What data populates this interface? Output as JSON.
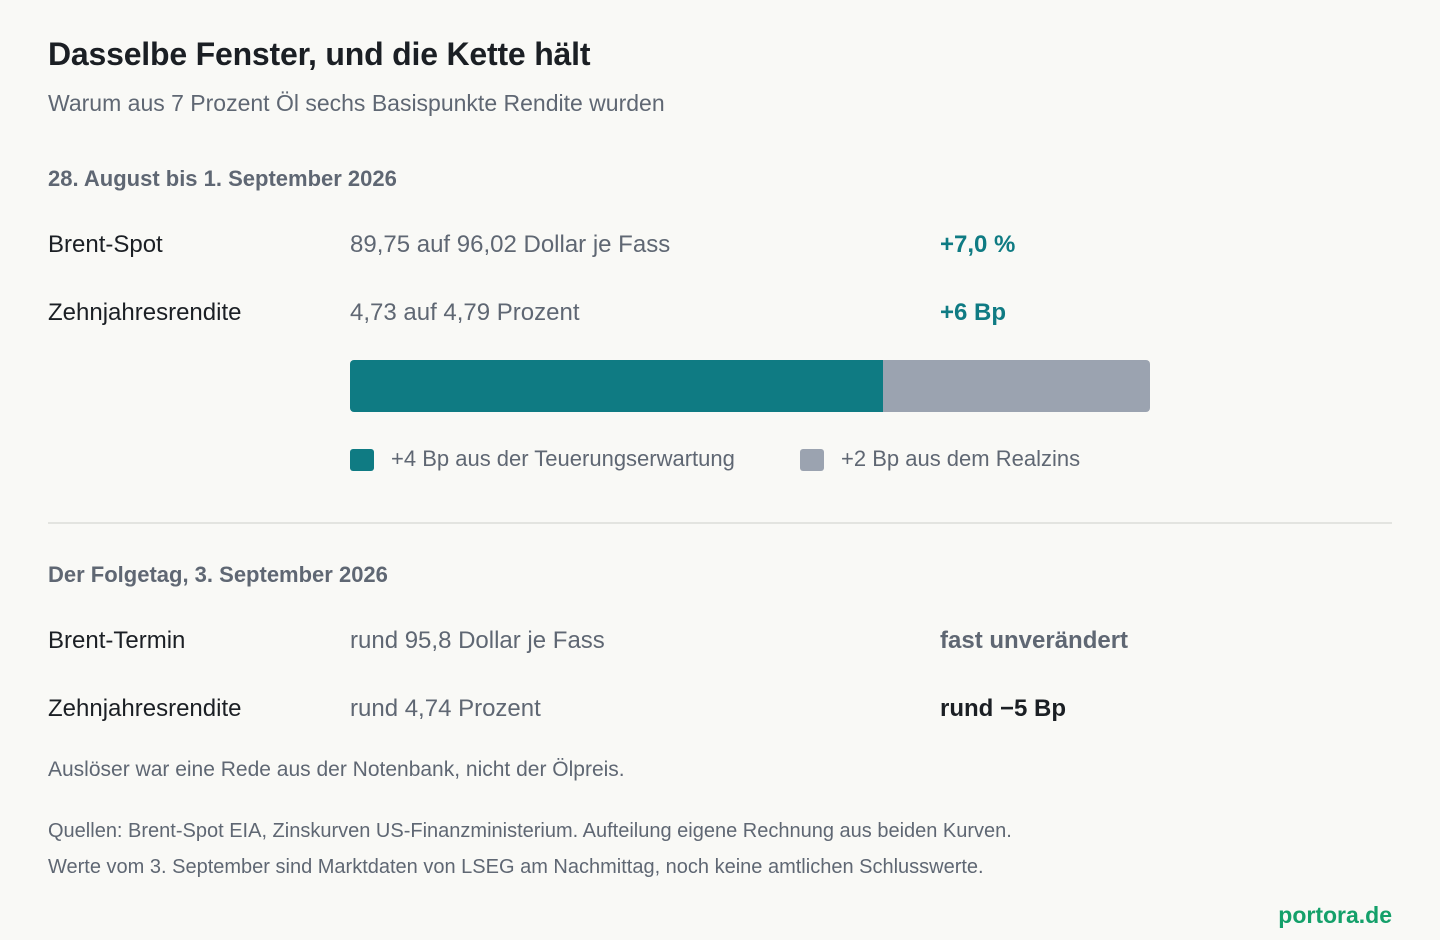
{
  "header": {
    "title": "Dasselbe Fenster, und die Kette hält",
    "subtitle": "Warum aus 7 Prozent Öl sechs Basispunkte Rendite wurden"
  },
  "window": {
    "heading": "28. August bis 1. September 2026",
    "rows": [
      {
        "label": "Brent-Spot",
        "detail": "89,75 auf 96,02 Dollar je Fass",
        "change": "+7,0 %"
      },
      {
        "label": "Zehnjahresrendite",
        "detail": "4,73 auf 4,79 Prozent",
        "change": "+6 Bp"
      }
    ]
  },
  "chart_data": {
    "type": "bar",
    "orientation": "horizontal-stacked",
    "total": 6,
    "unit": "Bp",
    "series": [
      {
        "name": "+4 Bp aus der Teuerungserwartung",
        "value": 4,
        "color": "#0f7b83"
      },
      {
        "name": "+2 Bp aus dem Realzins",
        "value": 2,
        "color": "#9ba3b0"
      }
    ]
  },
  "followup": {
    "heading": "Der Folgetag, 3. September 2026",
    "rows": [
      {
        "label": "Brent-Termin",
        "detail": "rund 95,8 Dollar je Fass",
        "change": "fast unverändert"
      },
      {
        "label": "Zehnjahresrendite",
        "detail": "rund 4,74 Prozent",
        "change": "rund −5 Bp"
      }
    ],
    "note": "Auslöser war eine Rede aus der Notenbank, nicht der Ölpreis."
  },
  "footer": {
    "source_line1": "Quellen: Brent-Spot EIA, Zinskurven US-Finanzministerium. Aufteilung eigene Rechnung aus beiden Kurven.",
    "source_line2": "Werte vom 3. September sind Marktdaten von LSEG am Nachmittag, noch keine amtlichen Schlusswerte.",
    "brand": "portora.de"
  },
  "colors": {
    "accent": "#0f7b83",
    "secondary": "#9ba3b0",
    "brand": "#14a06a"
  }
}
